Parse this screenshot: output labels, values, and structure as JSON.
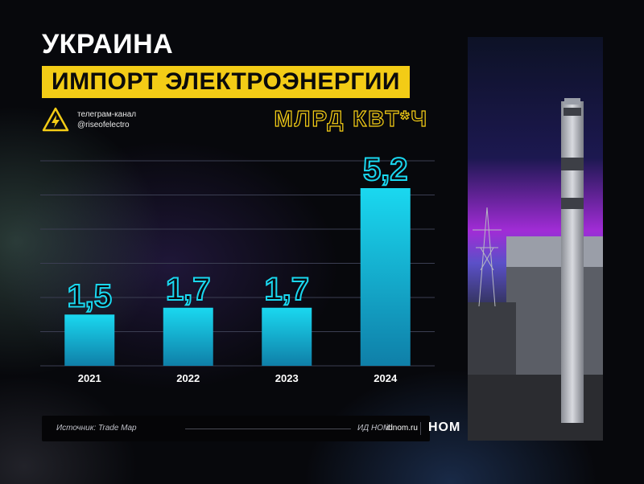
{
  "header": {
    "title": "УКРАИНА",
    "subtitle": "ИМПОРТ ЭЛЕКТРОЭНЕРГИИ",
    "channel_line1": "телеграм-канал",
    "channel_line2": "@riseofelectro",
    "unit": "МЛРД КВТ*Ч"
  },
  "chart_data": {
    "type": "bar",
    "title": "ИМПОРТ ЭЛЕКТРОЭНЕРГИИ",
    "ylabel": "МЛРД КВТ*Ч",
    "categories": [
      "2021",
      "2022",
      "2023",
      "2024"
    ],
    "values": [
      1.5,
      1.7,
      1.7,
      5.2
    ],
    "value_labels": [
      "1,5",
      "1,7",
      "1,7",
      "5,2"
    ],
    "ylim": [
      0,
      6
    ],
    "grid": true,
    "bar_color_top": "#1ad8f0",
    "bar_color_bottom": "#0f7fa8"
  },
  "footer": {
    "source": "Источник: Trade Map",
    "org": "ИД НОМ",
    "site": "idnom.ru",
    "brand": "НОМ"
  },
  "colors": {
    "accent": "#f3cc16",
    "background": "#07080c",
    "bar": "#1ad8f0"
  },
  "icons": {
    "channel_icon": "high-voltage-warning-icon"
  }
}
